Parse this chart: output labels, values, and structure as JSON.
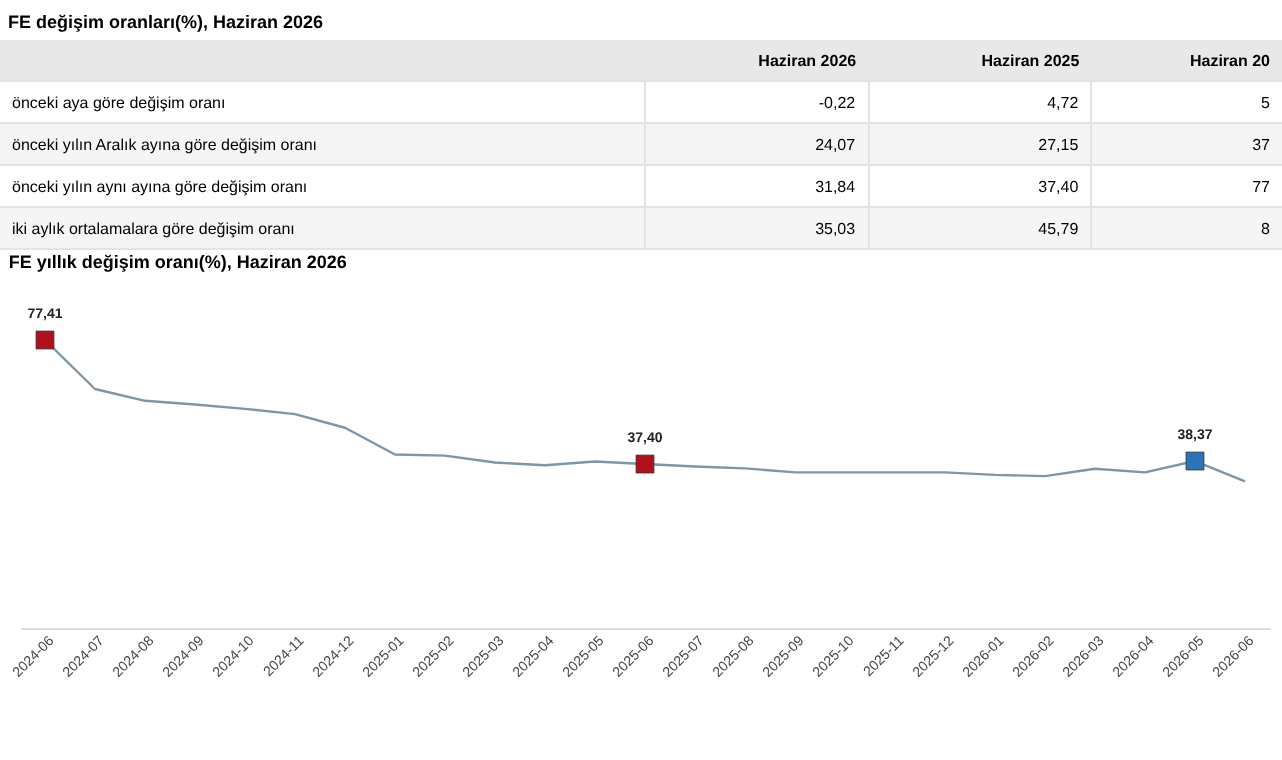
{
  "chart_data": [
    {
      "type": "other",
      "title": "FE değişim oranları(%), Haziran 2026",
      "categories": [
        "Haziran 2026",
        "Haziran 2025",
        "Haziran 20"
      ],
      "y_categories": [
        "önceki aya göre değişim oranı",
        "önceki yılın Aralık ayına göre değişim oranı",
        "önceki yılın aynı ayına göre değişim oranı",
        "iki aylık ortalamalara göre değişim oranı"
      ],
      "cell_labels": [
        [
          "-0,22",
          "4,72",
          "5"
        ],
        [
          "24,07",
          "27,15",
          "37"
        ],
        [
          "31,84",
          "37,40",
          "77"
        ],
        [
          "35,03",
          "45,79",
          "8"
        ]
      ]
    },
    {
      "type": "line",
      "title": "FE yıllık değişim oranı(%), Haziran 2026",
      "categories": [
        "2024-06",
        "2024-07",
        "2024-08",
        "2024-09",
        "2024-10",
        "2024-11",
        "2024-12",
        "2025-01",
        "2025-02",
        "2025-03",
        "2025-04",
        "2025-05",
        "2025-06",
        "2025-07",
        "2025-08",
        "2025-09",
        "2025-10",
        "2025-11",
        "2025-12",
        "2026-01",
        "2026-02",
        "2026-03",
        "2026-04",
        "2026-05",
        "2026-06"
      ],
      "series": [
        {
          "color": "#7f95a8",
          "values": [
            77.41,
            61.6,
            57.8,
            56.6,
            55.2,
            53.5,
            49.1,
            40.5,
            40.1,
            37.9,
            37.0,
            38.2,
            37.4,
            36.6,
            36.0,
            34.7,
            34.7,
            34.7,
            34.7,
            33.9,
            33.5,
            35.9,
            34.7,
            38.37,
            31.84
          ],
          "colors": [
            "#b0121b",
            null,
            null,
            null,
            null,
            null,
            null,
            null,
            null,
            null,
            null,
            null,
            "#b0121b",
            null,
            null,
            null,
            null,
            null,
            null,
            null,
            null,
            null,
            null,
            "#2a74b8",
            null
          ],
          "value_labels": [
            "77,41",
            null,
            null,
            null,
            null,
            null,
            null,
            null,
            null,
            null,
            null,
            null,
            "37,40",
            null,
            null,
            null,
            null,
            null,
            null,
            null,
            null,
            null,
            null,
            "38,37",
            null
          ]
        }
      ],
      "tick_labels": "x",
      "line_style": "solid",
      "grid": false
    }
  ]
}
